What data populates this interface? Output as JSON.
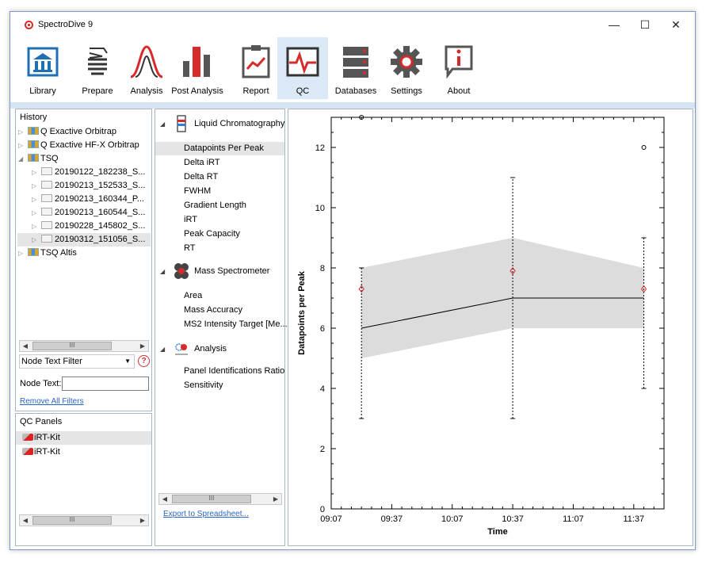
{
  "window": {
    "title": "SpectroDive 9",
    "minimize": "—",
    "maximize": "☐",
    "close": "✕"
  },
  "ribbon": {
    "buttons": [
      {
        "id": "library",
        "label": "Library"
      },
      {
        "id": "prepare",
        "label": "Prepare"
      },
      {
        "id": "analysis",
        "label": "Analysis"
      },
      {
        "id": "post-analysis",
        "label": "Post Analysis"
      },
      {
        "id": "report",
        "label": "Report"
      },
      {
        "id": "qc",
        "label": "QC"
      },
      {
        "id": "databases",
        "label": "Databases"
      },
      {
        "id": "settings",
        "label": "Settings"
      },
      {
        "id": "about",
        "label": "About"
      }
    ],
    "selected": "QC"
  },
  "history": {
    "title": "History",
    "items": [
      {
        "label": "Q Exactive Orbitrap"
      },
      {
        "label": "Q Exactive HF-X Orbitrap"
      },
      {
        "label": "TSQ"
      },
      {
        "label": "20190122_182238_S..."
      },
      {
        "label": "20190213_152533_S..."
      },
      {
        "label": "20190213_160344_P..."
      },
      {
        "label": "20190213_160544_S..."
      },
      {
        "label": "20190228_145802_S..."
      },
      {
        "label": "20190312_151056_S..."
      },
      {
        "label": "TSQ Altis"
      }
    ],
    "scroll_thumb": "III",
    "filter_label": "Node Text Filter",
    "help": "?",
    "node_text_label": "Node Text:",
    "node_text_value": "",
    "remove_filters": "Remove All Filters"
  },
  "qc_panels": {
    "title": "QC Panels",
    "items": [
      {
        "label": "iRT-Kit"
      },
      {
        "label": "iRT-Kit"
      }
    ],
    "scroll_thumb": "III"
  },
  "metrics": {
    "categories": [
      {
        "label": "Liquid Chromatography",
        "items": [
          "Datapoints Per Peak",
          "Delta iRT",
          "Delta RT",
          "FWHM",
          "Gradient Length",
          "iRT",
          "Peak Capacity",
          "RT"
        ]
      },
      {
        "label": "Mass Spectrometer",
        "items": [
          "Area",
          "Mass Accuracy",
          "MS2 Intensity Target [Me..."
        ]
      },
      {
        "label": "Analysis",
        "items": [
          "Panel Identifications Ratio",
          "Sensitivity"
        ]
      }
    ],
    "selected": "Datapoints Per Peak",
    "scroll_thumb": "III",
    "export_link": "Export to Spreadsheet..."
  },
  "colors": {
    "accent": "#d62b2b",
    "selected_bg": "#dbe8f6",
    "band_fill": "#dcdcdc",
    "link": "#2a66c9"
  },
  "chart_data": {
    "type": "line",
    "xlabel": "Time",
    "ylabel": "Datapoints per Peak",
    "ylim": [
      0,
      13
    ],
    "x_ticks": [
      "09:07",
      "09:37",
      "10:07",
      "10:37",
      "11:07",
      "11:37"
    ],
    "y_ticks": [
      0,
      2,
      4,
      6,
      8,
      10,
      12
    ],
    "x_times": [
      "09:22",
      "10:37",
      "11:42"
    ],
    "median": [
      6,
      7,
      7
    ],
    "mean": [
      7.3,
      7.9,
      7.3
    ],
    "band_low": [
      5,
      6,
      6
    ],
    "band_high": [
      8,
      9,
      8
    ],
    "whisker_low": [
      3,
      3,
      4
    ],
    "whisker_high": [
      8,
      11,
      9
    ],
    "outliers": [
      {
        "x": "11:42",
        "y": 12
      },
      {
        "x": "09:22",
        "y": 13
      }
    ]
  }
}
